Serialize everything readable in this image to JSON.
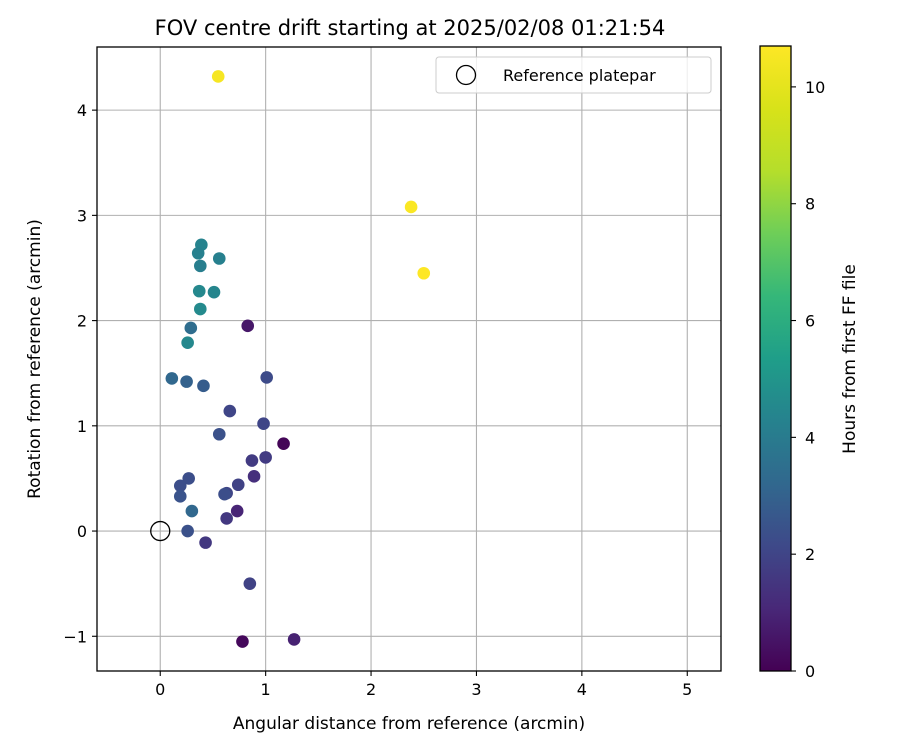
{
  "chart_data": {
    "type": "scatter",
    "title": "FOV centre drift starting at 2025/02/08 01:21:54",
    "xlabel": "Angular distance from reference (arcmin)",
    "ylabel": "Rotation from reference (arcmin)",
    "xlim": [
      -0.6,
      5.32
    ],
    "ylim": [
      -1.33,
      4.6
    ],
    "xticks": [
      0,
      1,
      2,
      3,
      4,
      5
    ],
    "xtick_labels": [
      "0",
      "1",
      "2",
      "3",
      "4",
      "5"
    ],
    "yticks": [
      -1,
      0,
      1,
      2,
      3,
      4
    ],
    "ytick_labels": [
      "−1",
      "0",
      "1",
      "2",
      "3",
      "4"
    ],
    "grid": true,
    "legend": {
      "placement": "top-right",
      "entries": [
        "Reference platepar"
      ]
    },
    "reference_point": {
      "label": "Reference platepar",
      "x": 0,
      "y": 0
    },
    "colorbar": {
      "label": "Hours from first FF file",
      "colormap": "viridis",
      "range": [
        0,
        10.7
      ],
      "ticks": [
        0,
        2,
        4,
        6,
        8,
        10
      ],
      "tick_labels": [
        "0",
        "2",
        "4",
        "6",
        "8",
        "10"
      ]
    },
    "points": [
      {
        "x": 0.55,
        "y": 4.32,
        "c": 10.5
      },
      {
        "x": 2.38,
        "y": 3.08,
        "c": 10.6
      },
      {
        "x": 2.5,
        "y": 2.45,
        "c": 10.7
      },
      {
        "x": 0.39,
        "y": 2.72,
        "c": 4.3
      },
      {
        "x": 0.36,
        "y": 2.64,
        "c": 4.2
      },
      {
        "x": 0.56,
        "y": 2.59,
        "c": 4.2
      },
      {
        "x": 0.38,
        "y": 2.52,
        "c": 4.1
      },
      {
        "x": 0.37,
        "y": 2.28,
        "c": 4.5
      },
      {
        "x": 0.51,
        "y": 2.27,
        "c": 4.4
      },
      {
        "x": 0.38,
        "y": 2.11,
        "c": 4.6
      },
      {
        "x": 0.29,
        "y": 1.93,
        "c": 3.4
      },
      {
        "x": 0.26,
        "y": 1.79,
        "c": 4.5
      },
      {
        "x": 0.83,
        "y": 1.95,
        "c": 0.6
      },
      {
        "x": 0.11,
        "y": 1.45,
        "c": 3.2
      },
      {
        "x": 0.25,
        "y": 1.42,
        "c": 3.0
      },
      {
        "x": 0.41,
        "y": 1.38,
        "c": 2.8
      },
      {
        "x": 1.01,
        "y": 1.46,
        "c": 2.2
      },
      {
        "x": 0.66,
        "y": 1.14,
        "c": 2.0
      },
      {
        "x": 0.98,
        "y": 1.02,
        "c": 2.0
      },
      {
        "x": 0.56,
        "y": 0.92,
        "c": 2.4
      },
      {
        "x": 1.17,
        "y": 0.83,
        "c": 0.1
      },
      {
        "x": 1.0,
        "y": 0.7,
        "c": 1.7
      },
      {
        "x": 0.87,
        "y": 0.67,
        "c": 1.7
      },
      {
        "x": 0.89,
        "y": 0.52,
        "c": 1.3
      },
      {
        "x": 0.27,
        "y": 0.5,
        "c": 2.3
      },
      {
        "x": 0.74,
        "y": 0.44,
        "c": 1.9
      },
      {
        "x": 0.19,
        "y": 0.43,
        "c": 2.3
      },
      {
        "x": 0.63,
        "y": 0.36,
        "c": 2.0
      },
      {
        "x": 0.61,
        "y": 0.35,
        "c": 2.3
      },
      {
        "x": 0.19,
        "y": 0.33,
        "c": 2.5
      },
      {
        "x": 0.3,
        "y": 0.19,
        "c": 3.2
      },
      {
        "x": 0.73,
        "y": 0.19,
        "c": 1.0
      },
      {
        "x": 0.63,
        "y": 0.12,
        "c": 1.6
      },
      {
        "x": 0.26,
        "y": 0.0,
        "c": 2.4
      },
      {
        "x": 0.43,
        "y": -0.11,
        "c": 1.6
      },
      {
        "x": 0.85,
        "y": -0.5,
        "c": 1.9
      },
      {
        "x": 1.27,
        "y": -1.03,
        "c": 0.9
      },
      {
        "x": 0.78,
        "y": -1.05,
        "c": 0.2
      }
    ]
  }
}
